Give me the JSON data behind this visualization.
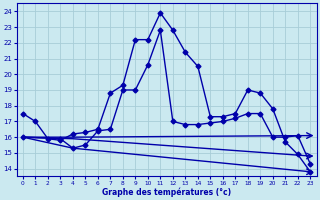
{
  "xlabel": "Graphe des températures (°c)",
  "bg_color": "#cbe9f0",
  "grid_color": "#a8cdd8",
  "line_color": "#0000aa",
  "ylim": [
    13.5,
    24.5
  ],
  "xlim": [
    -0.5,
    23.5
  ],
  "yticks": [
    14,
    15,
    16,
    17,
    18,
    19,
    20,
    21,
    22,
    23,
    24
  ],
  "xticks": [
    0,
    1,
    2,
    3,
    4,
    5,
    6,
    7,
    8,
    9,
    10,
    11,
    12,
    13,
    14,
    15,
    16,
    17,
    18,
    19,
    20,
    21,
    22,
    23
  ],
  "line1_x": [
    0,
    1,
    2,
    3,
    4,
    5,
    6,
    7,
    8,
    9,
    10,
    11,
    12,
    13,
    14,
    15,
    16,
    17,
    18,
    19,
    20,
    21,
    22,
    23
  ],
  "line1_y": [
    17.5,
    17.0,
    15.9,
    15.8,
    16.2,
    16.3,
    16.5,
    18.8,
    19.3,
    22.2,
    22.2,
    23.9,
    22.8,
    21.4,
    20.5,
    17.3,
    17.3,
    17.5,
    19.0,
    18.8,
    17.8,
    15.7,
    14.9,
    13.8
  ],
  "line2_x": [
    0,
    3,
    4,
    5,
    6,
    7,
    8,
    9,
    10,
    11,
    12,
    13,
    14,
    15,
    16,
    17,
    18,
    19,
    20,
    21,
    22,
    23
  ],
  "line2_y": [
    16.0,
    15.9,
    15.3,
    15.5,
    16.4,
    16.5,
    19.0,
    19.0,
    20.6,
    22.8,
    17.0,
    16.8,
    16.8,
    16.9,
    17.0,
    17.2,
    17.5,
    17.5,
    16.0,
    16.0,
    16.1,
    14.3
  ],
  "line3_x": [
    0,
    3,
    4,
    23
  ],
  "line3_y": [
    16.0,
    16.0,
    16.0,
    16.1
  ],
  "line4_x": [
    0,
    4,
    23
  ],
  "line4_y": [
    16.0,
    15.9,
    14.8
  ],
  "line5_x": [
    0,
    4,
    23
  ],
  "line5_y": [
    16.0,
    15.3,
    13.8
  ]
}
